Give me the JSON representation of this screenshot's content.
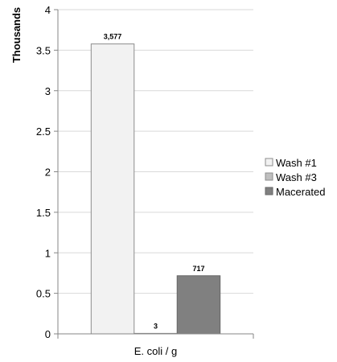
{
  "chart_data": {
    "type": "bar",
    "categories": [
      "E. coli / g"
    ],
    "series": [
      {
        "name": "Wash #1",
        "values": [
          3.577
        ],
        "label": "3,577",
        "color": "#f2f2f2",
        "stroke": "#8c8c8c"
      },
      {
        "name": "Wash #3",
        "values": [
          0.003
        ],
        "label": "3",
        "color": "#bfbfbf",
        "stroke": "#8c8c8c"
      },
      {
        "name": "Macerated",
        "values": [
          0.717
        ],
        "label": "717",
        "color": "#808080",
        "stroke": "#666666"
      }
    ],
    "ylabel": "Thousands",
    "ylim": [
      0,
      4
    ],
    "yticks": [
      "0",
      "0.5",
      "1",
      "1.5",
      "2",
      "2.5",
      "3",
      "3.5",
      "4"
    ],
    "grid": true,
    "legend_position": "right"
  }
}
